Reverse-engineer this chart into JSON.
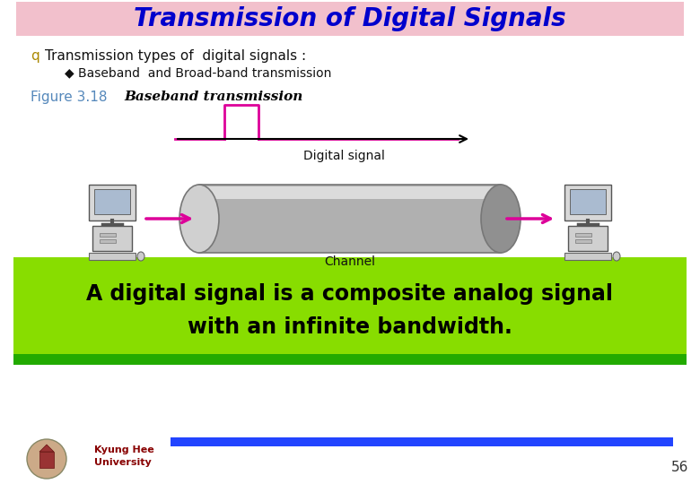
{
  "title": "Transmission of Digital Signals",
  "title_bg": "#f2c0cc",
  "title_color": "#0000cc",
  "title_fontsize": 20,
  "bullet_q": "q",
  "bullet_text": "Transmission types of  digital signals :",
  "sub_bullet_text": "◆ Baseband  and Broad-band transmission",
  "figure_label": "Figure 3.18",
  "figure_label_color": "#5588bb",
  "figure_caption": "Baseband transmission",
  "digital_signal_label": "Digital signal",
  "channel_label": "Channel",
  "signal_color": "#dd0099",
  "bg_color": "#ffffff",
  "bottom_box_color": "#88dd00",
  "bottom_text_line1": "A digital signal is a composite analog signal",
  "bottom_text_line2": "with an infinite bandwidth.",
  "bottom_text_color": "#000000",
  "footer_text1": "Kyung Hee",
  "footer_text2": "University",
  "footer_color": "#880000",
  "page_num": "56",
  "green_bar_color": "#22aa00",
  "blue_bar_color": "#2244ff",
  "cyl_body_color": "#b0b0b0",
  "cyl_left_color": "#d0d0d0",
  "cyl_right_color": "#909090",
  "cyl_highlight_color": "#e0e0e0"
}
